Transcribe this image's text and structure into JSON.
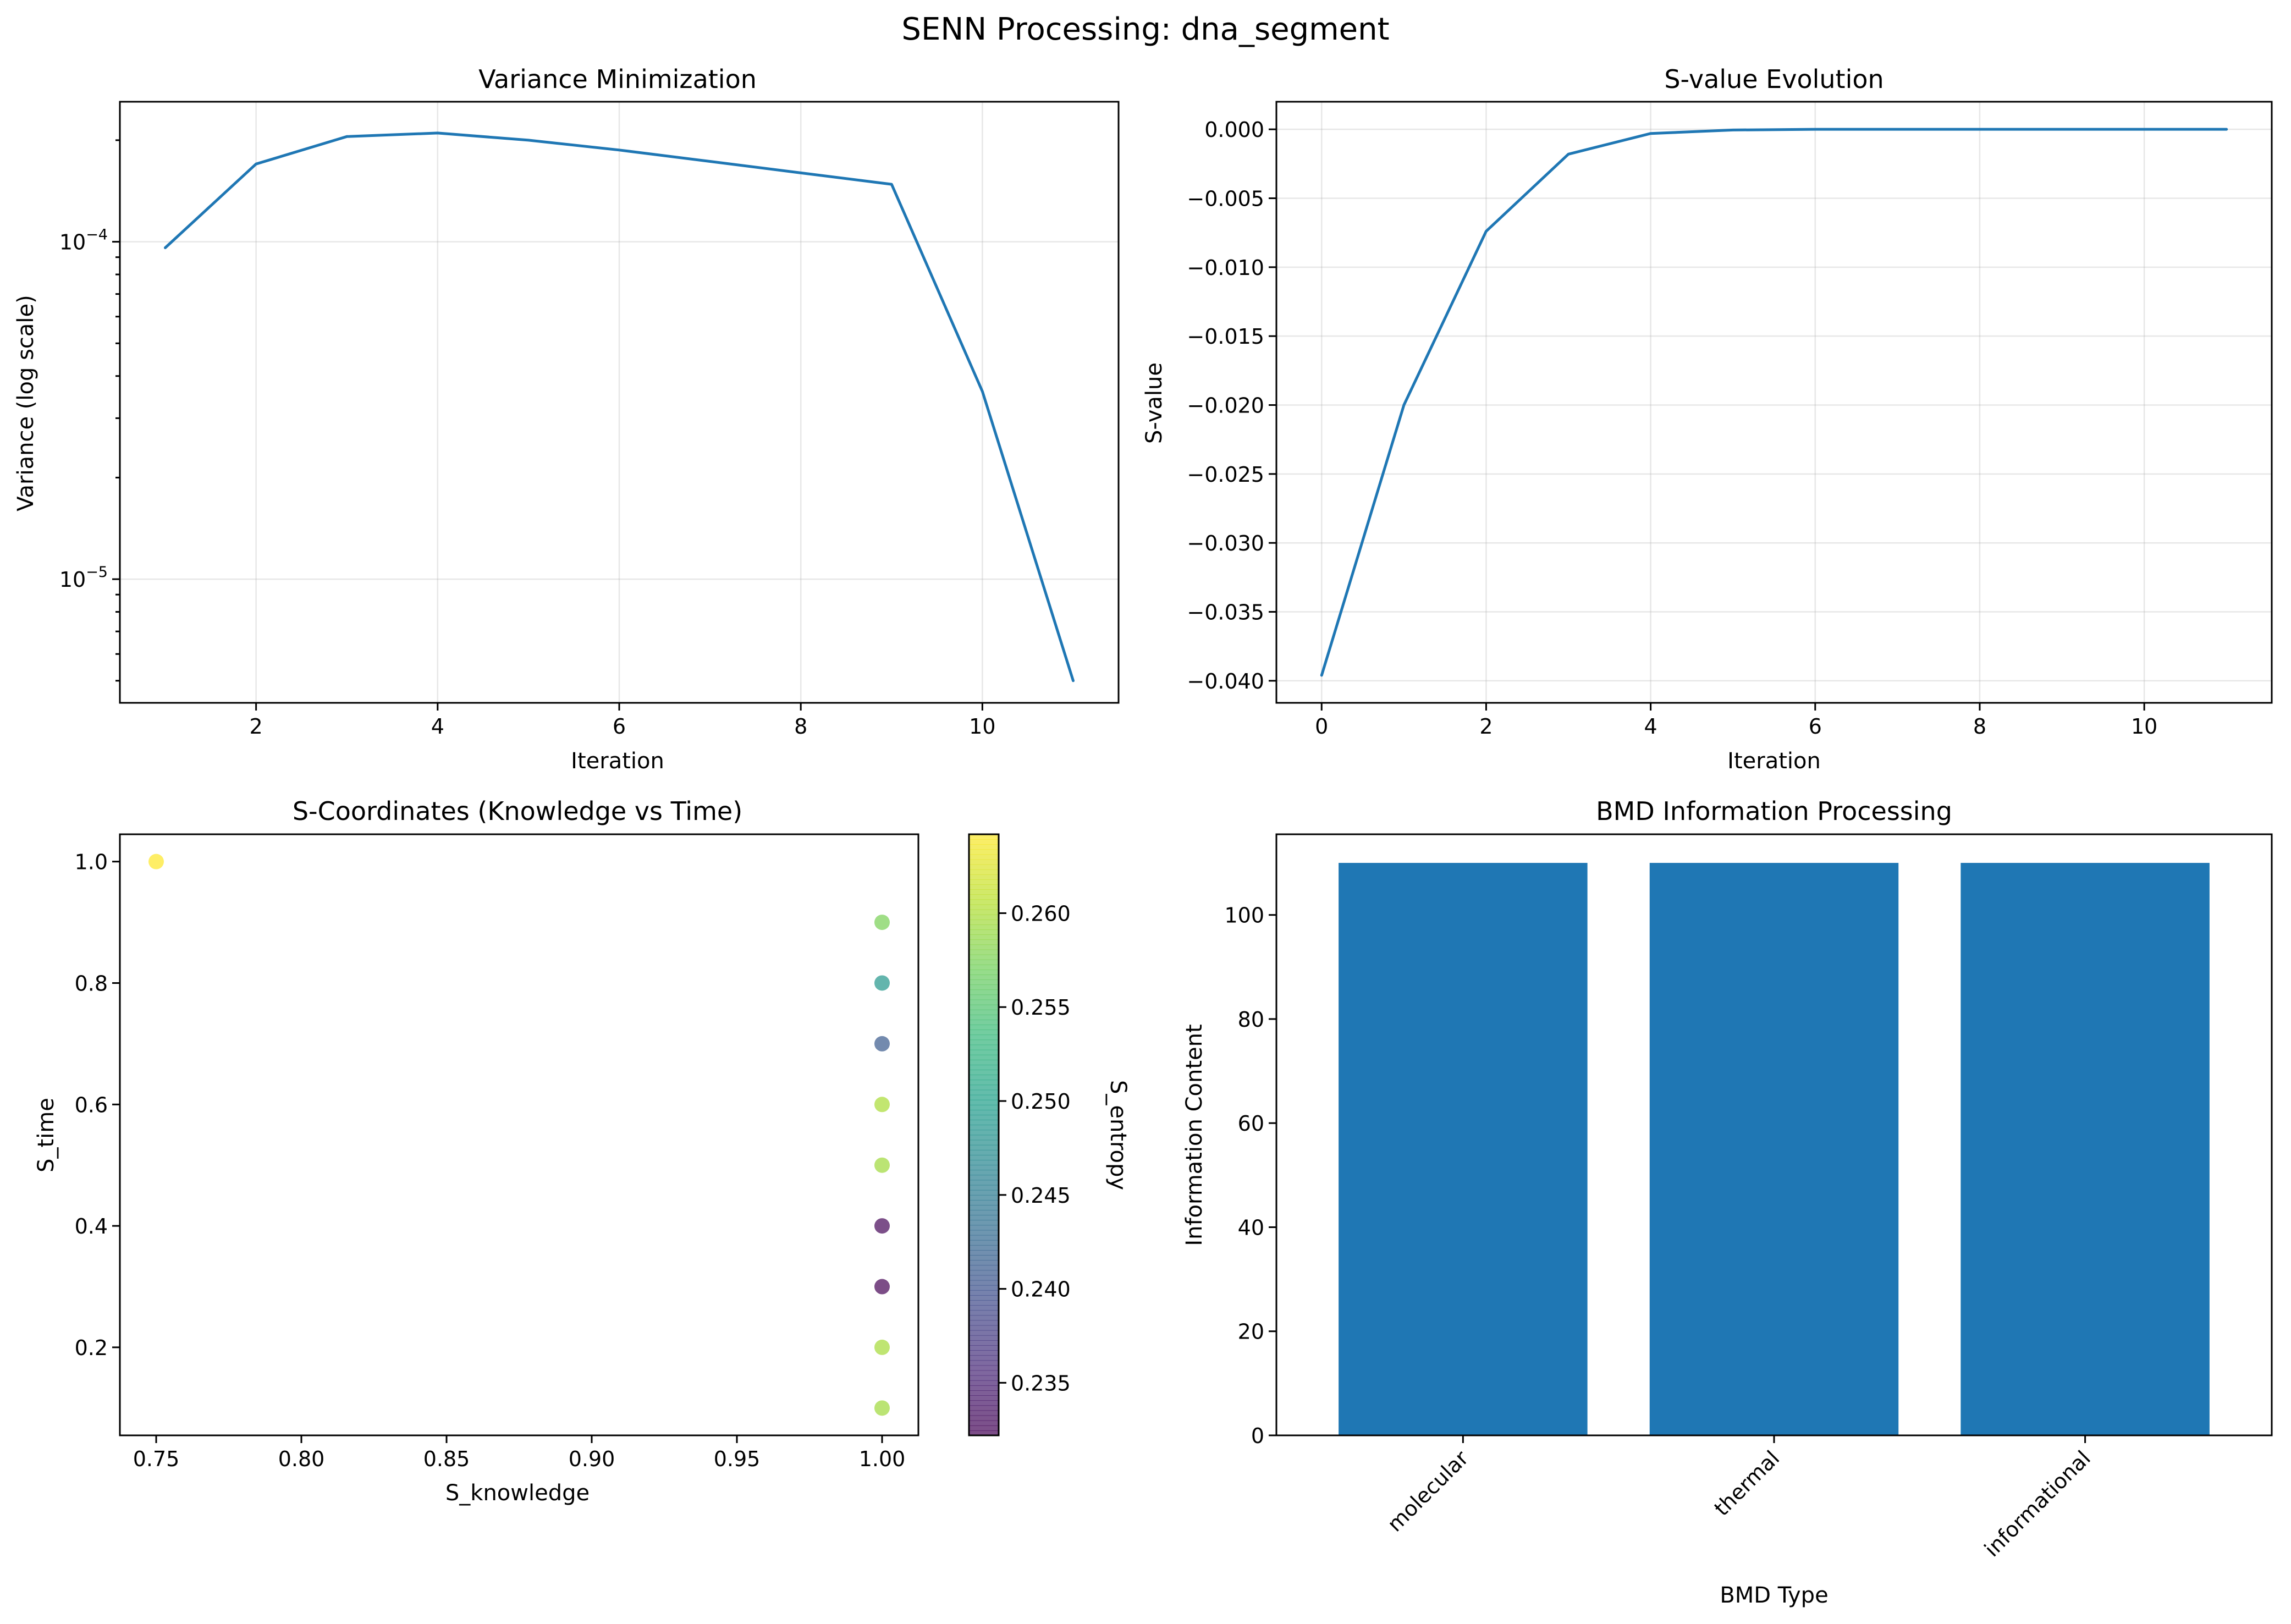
{
  "figure": {
    "title": "SENN Processing: dna_segment",
    "colors": {
      "line": "#1f77b4",
      "bar": "#1f77b4"
    }
  },
  "chart_data": [
    {
      "type": "line",
      "title": "Variance Minimization",
      "xlabel": "Iteration",
      "ylabel": "Variance (log scale)",
      "yscale": "log",
      "grid": true,
      "xlim": [
        0.5,
        11.5
      ],
      "ylim": [
        4.3e-06,
        0.00026
      ],
      "xticks": [
        2,
        4,
        6,
        8,
        10
      ],
      "xticklabels": [
        "2",
        "4",
        "6",
        "8",
        "10"
      ],
      "yticks": [
        1e-05,
        0.0001
      ],
      "yticklabels": [
        {
          "base": "10",
          "exp": "−5"
        },
        {
          "base": "10",
          "exp": "−4"
        }
      ],
      "x": [
        1,
        2,
        3,
        4,
        5,
        6,
        7,
        8,
        9,
        10,
        11
      ],
      "y": [
        9.6e-05,
        0.00017,
        0.000205,
        0.00021,
        0.0002,
        0.000187,
        0.000173,
        0.00016,
        0.000148,
        3.6e-05,
        5e-06
      ]
    },
    {
      "type": "line",
      "title": "S-value Evolution",
      "xlabel": "Iteration",
      "ylabel": "S-value",
      "grid": true,
      "xlim": [
        -0.55,
        11.55
      ],
      "ylim": [
        -0.0416,
        0.002
      ],
      "xticks": [
        0,
        2,
        4,
        6,
        8,
        10
      ],
      "xticklabels": [
        "0",
        "2",
        "4",
        "6",
        "8",
        "10"
      ],
      "yticks": [
        0,
        -0.005,
        -0.01,
        -0.015,
        -0.02,
        -0.025,
        -0.03,
        -0.035,
        -0.04
      ],
      "yticklabels": [
        "0.000",
        "−0.005",
        "−0.010",
        "−0.015",
        "−0.020",
        "−0.025",
        "−0.030",
        "−0.035",
        "−0.040"
      ],
      "x": [
        0,
        1,
        2,
        3,
        4,
        5,
        6,
        7,
        8,
        9,
        10,
        11
      ],
      "y": [
        -0.0396,
        -0.02,
        -0.0074,
        -0.0018,
        -0.0003,
        -5e-05,
        0,
        0,
        0,
        0,
        0,
        0
      ]
    },
    {
      "type": "scatter",
      "title": "S-Coordinates (Knowledge vs Time)",
      "xlabel": "S_knowledge",
      "ylabel": "S_time",
      "colorbar_label": "S_entropy",
      "colormap": "viridis",
      "grid": false,
      "xlim": [
        0.7375,
        1.0125
      ],
      "ylim": [
        0.055,
        1.045
      ],
      "xticks": [
        0.75,
        0.8,
        0.85,
        0.9,
        0.95,
        1.0
      ],
      "xticklabels": [
        "0.75",
        "0.80",
        "0.85",
        "0.90",
        "0.95",
        "1.00"
      ],
      "yticks": [
        0.2,
        0.4,
        0.6,
        0.8,
        1.0
      ],
      "yticklabels": [
        "0.2",
        "0.4",
        "0.6",
        "0.8",
        "1.0"
      ],
      "clim": [
        0.2322,
        0.2642
      ],
      "cticks": [
        0.235,
        0.24,
        0.245,
        0.25,
        0.255,
        0.26
      ],
      "cticklabels": [
        "0.235",
        "0.240",
        "0.245",
        "0.250",
        "0.255",
        "0.260"
      ],
      "points": [
        {
          "x": 0.75,
          "y": 1.0,
          "c": 0.2642
        },
        {
          "x": 1.0,
          "y": 0.9,
          "c": 0.2575
        },
        {
          "x": 1.0,
          "y": 0.8,
          "c": 0.249
        },
        {
          "x": 1.0,
          "y": 0.7,
          "c": 0.241
        },
        {
          "x": 1.0,
          "y": 0.6,
          "c": 0.26
        },
        {
          "x": 1.0,
          "y": 0.5,
          "c": 0.2595
        },
        {
          "x": 1.0,
          "y": 0.4,
          "c": 0.2325
        },
        {
          "x": 1.0,
          "y": 0.3,
          "c": 0.2322
        },
        {
          "x": 1.0,
          "y": 0.2,
          "c": 0.2598
        },
        {
          "x": 1.0,
          "y": 0.1,
          "c": 0.2595
        }
      ]
    },
    {
      "type": "bar",
      "title": "BMD Information Processing",
      "xlabel": "BMD Type",
      "ylabel": "Information Content",
      "grid": false,
      "ylim": [
        0,
        115.5
      ],
      "yticks": [
        0,
        20,
        40,
        60,
        80,
        100
      ],
      "yticklabels": [
        "0",
        "20",
        "40",
        "60",
        "80",
        "100"
      ],
      "categories": [
        "molecular",
        "thermal",
        "informational"
      ],
      "values": [
        110,
        110,
        110
      ]
    }
  ]
}
